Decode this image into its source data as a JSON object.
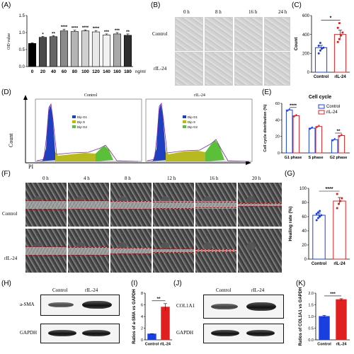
{
  "panels": {
    "A": "(A)",
    "B": "(B)",
    "C": "(C)",
    "D": "(D)",
    "E": "(E)",
    "F": "(F)",
    "G": "(G)",
    "H": "(H)",
    "I": "(I)",
    "J": "(J)",
    "K": "(K)"
  },
  "panel_b": {
    "times": [
      "0 h",
      "8 h",
      "16 h",
      "24 h"
    ],
    "rows": [
      "Control",
      "rIL-24"
    ]
  },
  "panel_d": {
    "titles": [
      "Control",
      "rIL-24"
    ],
    "legend": [
      "Dip G1",
      "Dip S",
      "Dip G2"
    ],
    "xlabel": "PI",
    "ylabel": "Count",
    "colors": {
      "g1": "#1f3fbf",
      "s": "#b8b820",
      "g2": "#5bbf3a"
    }
  },
  "panel_f": {
    "times": [
      "0 h",
      "4 h",
      "8 h",
      "12 h",
      "16 h",
      "20 h"
    ],
    "rows": [
      "Control",
      "rIL-24"
    ]
  },
  "panel_h": {
    "cols": [
      "Control",
      "rIL-24"
    ],
    "rows": [
      "a-SMA",
      "GAPDH"
    ]
  },
  "panel_j": {
    "cols": [
      "Control",
      "rIL-24"
    ],
    "rows": [
      "COL1A1",
      "GAPDH"
    ]
  },
  "chart_data": [
    {
      "panel": "A",
      "type": "bar",
      "categories": [
        "0",
        "20",
        "40",
        "60",
        "80",
        "100",
        "120",
        "140",
        "160",
        "180"
      ],
      "values": [
        0.68,
        0.86,
        0.88,
        1.05,
        1.03,
        1.05,
        1.02,
        0.93,
        0.96,
        0.92
      ],
      "errors": [
        0.02,
        0.03,
        0.03,
        0.05,
        0.04,
        0.03,
        0.04,
        0.03,
        0.04,
        0.04
      ],
      "sig": [
        "",
        "*",
        "**",
        "****",
        "****",
        "****",
        "****",
        "***",
        "***",
        "**"
      ],
      "ylabel": "OD value",
      "xunit": "ng/ml",
      "ylim": [
        0.0,
        1.5
      ],
      "yticks": [
        "0.0",
        "0.5",
        "1.0",
        "1.5"
      ],
      "colors": [
        "#000000",
        "#4a4a4a",
        "#666666",
        "#8a8a8a",
        "#b5b5b5",
        "#d0d0d0",
        "#e8e8e8",
        "#f2f2f2",
        "#a8a8a8",
        "#2e2e2e"
      ]
    },
    {
      "panel": "C",
      "type": "bar",
      "categories": [
        "Control",
        "rIL-24"
      ],
      "values": [
        260,
        400
      ],
      "errors": [
        25,
        45
      ],
      "points": [
        [
          200,
          230,
          250,
          260,
          280,
          310
        ],
        [
          320,
          350,
          390,
          420,
          470,
          520
        ]
      ],
      "sig": "*",
      "ylabel": "Count",
      "ylim": [
        0,
        600
      ],
      "yticks": [
        "0",
        "200",
        "400",
        "600"
      ],
      "colors": [
        "#1a3fe0",
        "#e02020"
      ]
    },
    {
      "panel": "E",
      "type": "bar",
      "title": "Cell cycle",
      "categories": [
        "G1 phase",
        "S phase",
        "G2 phase"
      ],
      "series": [
        {
          "name": "Control",
          "values": [
            52,
            30,
            16
          ],
          "color": "#1a3fe0"
        },
        {
          "name": "rIL-24",
          "values": [
            45,
            32,
            21
          ],
          "color": "#e02020"
        }
      ],
      "sig": [
        "****",
        "",
        "**"
      ],
      "ylabel": "Cell cycle distribution (%)",
      "ylim": [
        0,
        60
      ],
      "yticks": [
        "0",
        "20",
        "40",
        "60"
      ],
      "legend": "top-right"
    },
    {
      "panel": "G",
      "type": "bar",
      "categories": [
        "Control",
        "rIL-24"
      ],
      "values": [
        62,
        82
      ],
      "errors": [
        3,
        5
      ],
      "points": [
        [
          55,
          58,
          60,
          62,
          64,
          66,
          68
        ],
        [
          72,
          78,
          82,
          86,
          92
        ]
      ],
      "sig": "****",
      "ylabel": "Healing rate (%)",
      "ylim": [
        0,
        100
      ],
      "yticks": [
        "0",
        "20",
        "40",
        "60",
        "80",
        "100"
      ],
      "colors": [
        "#1a3fe0",
        "#e02020"
      ]
    },
    {
      "panel": "I",
      "type": "bar",
      "categories": [
        "Control",
        "rIL-24"
      ],
      "values": [
        1.0,
        5.6
      ],
      "errors": [
        0.05,
        0.6
      ],
      "sig": "**",
      "ylabel": "Ratios of a-SMA vs GAPDH",
      "ylim": [
        0,
        8
      ],
      "yticks": [
        "0",
        "2",
        "4",
        "6",
        "8"
      ],
      "colors": [
        "#1a3fe0",
        "#e02020"
      ]
    },
    {
      "panel": "K",
      "type": "bar",
      "categories": [
        "Control",
        "rIL-24"
      ],
      "values": [
        1.0,
        1.72
      ],
      "errors": [
        0.05,
        0.04
      ],
      "sig": "***",
      "ylabel": "Ratios of COL1A1 vs GAPDH",
      "ylim": [
        0.0,
        2.0
      ],
      "yticks": [
        "0.0",
        "0.5",
        "1.0",
        "1.5",
        "2.0"
      ],
      "colors": [
        "#1a3fe0",
        "#e02020"
      ]
    }
  ]
}
